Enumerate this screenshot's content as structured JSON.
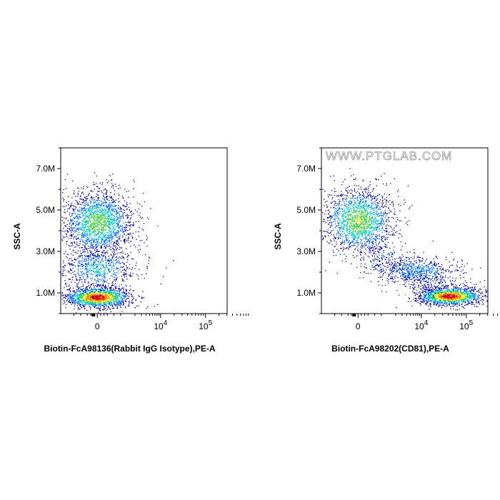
{
  "watermark": "WWW.PTGLAB.COM",
  "chart_data": [
    {
      "type": "scatter",
      "subtype": "flow-cytometry-density-dot-plot",
      "xlabel": "Biotin-FcA98136(Rabbit IgG Isotype),PE-A",
      "ylabel": "SSC-A",
      "x_scale": "biexponential",
      "y_ticks": [
        "1.0M",
        "3.0M",
        "5.0M",
        "7.0M"
      ],
      "x_ticks": [
        {
          "base": "0",
          "exp": ""
        },
        {
          "base": "10",
          "exp": "4"
        },
        {
          "base": "10",
          "exp": "5"
        }
      ],
      "ylim_millions": [
        0,
        8
      ],
      "colormap": [
        "#0000a0",
        "#0070ff",
        "#00c8c8",
        "#40d040",
        "#e8e800",
        "#ff8000",
        "#e00000"
      ],
      "populations": [
        {
          "x": 0,
          "y_millions": 0.8,
          "x_spread": 0.1,
          "y_spread": 0.25,
          "relative_density": 1.0,
          "events": 1500
        },
        {
          "x": 0,
          "y_millions": 2.2,
          "x_spread": 0.12,
          "y_spread": 0.55,
          "relative_density": 0.35,
          "events": 700
        },
        {
          "x": 0,
          "y_millions": 4.4,
          "x_spread": 0.11,
          "y_spread": 0.8,
          "relative_density": 0.55,
          "events": 1900
        }
      ]
    },
    {
      "type": "scatter",
      "subtype": "flow-cytometry-density-dot-plot",
      "xlabel": "Biotin-FcA98202(CD81),PE-A",
      "ylabel": "SSC-A",
      "x_scale": "biexponential",
      "y_ticks": [
        "1.0M",
        "3.0M",
        "5.0M",
        "7.0M"
      ],
      "x_ticks": [
        {
          "base": "0",
          "exp": ""
        },
        {
          "base": "10",
          "exp": "4"
        },
        {
          "base": "10",
          "exp": "5"
        }
      ],
      "ylim_millions": [
        0,
        8
      ],
      "colormap": [
        "#0000a0",
        "#0070ff",
        "#00c8c8",
        "#40d040",
        "#e8e800",
        "#ff8000",
        "#e00000"
      ],
      "populations": [
        {
          "x": 0,
          "y_millions": 4.5,
          "x_spread": 0.11,
          "y_spread": 0.8,
          "relative_density": 0.6,
          "events": 1700
        },
        {
          "x": 0.35,
          "y_millions": 2.1,
          "x_spread": 0.13,
          "y_spread": 0.35,
          "relative_density": 0.3,
          "events": 600
        },
        {
          "x": 0.55,
          "y_millions": 0.85,
          "x_spread": 0.1,
          "y_spread": 0.22,
          "relative_density": 1.0,
          "events": 1400
        }
      ]
    }
  ]
}
